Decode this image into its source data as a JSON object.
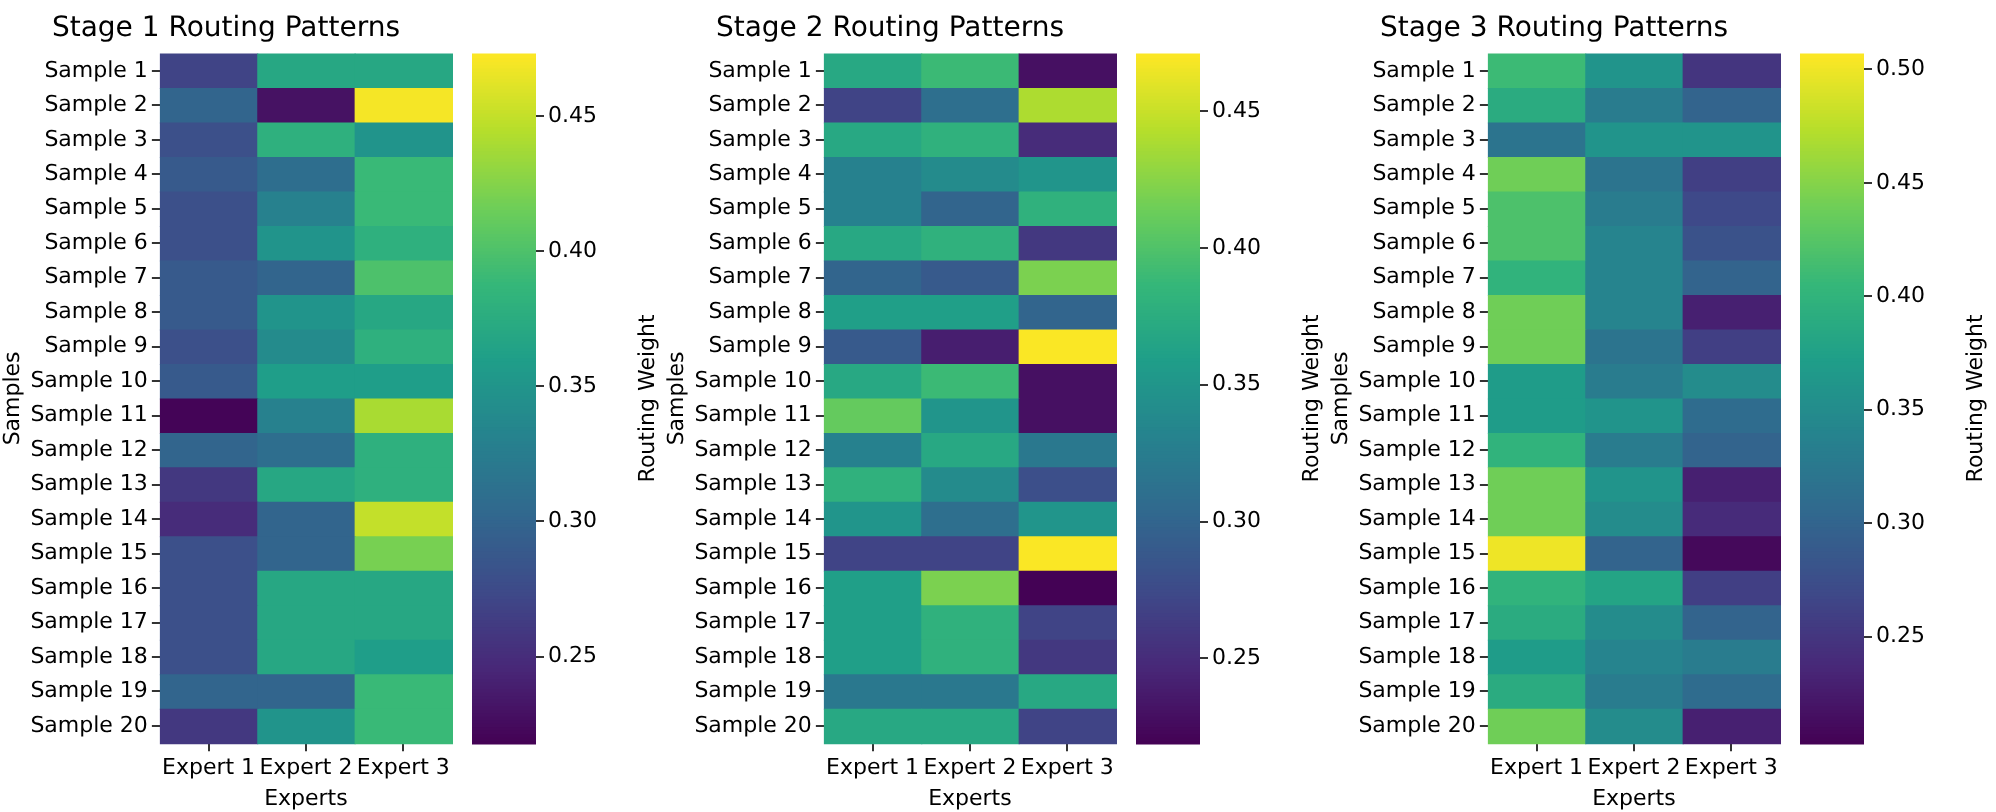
{
  "chart_data": [
    {
      "type": "heatmap",
      "title": "Stage 1 Routing Patterns",
      "xlabel": "Experts",
      "ylabel": "Samples",
      "clabel": "Routing Weight",
      "categories": [
        "Expert 1",
        "Expert 2",
        "Expert 3"
      ],
      "y_categories": [
        "Sample 1",
        "Sample 2",
        "Sample 3",
        "Sample 4",
        "Sample 5",
        "Sample 6",
        "Sample 7",
        "Sample 8",
        "Sample 9",
        "Sample 10",
        "Sample 11",
        "Sample 12",
        "Sample 13",
        "Sample 14",
        "Sample 15",
        "Sample 16",
        "Sample 17",
        "Sample 18",
        "Sample 19",
        "Sample 20"
      ],
      "cells": [
        [
          0.27,
          0.37,
          0.37
        ],
        [
          0.3,
          0.23,
          0.47
        ],
        [
          0.28,
          0.38,
          0.35
        ],
        [
          0.29,
          0.31,
          0.39
        ],
        [
          0.28,
          0.33,
          0.39
        ],
        [
          0.28,
          0.35,
          0.38
        ],
        [
          0.29,
          0.3,
          0.4
        ],
        [
          0.29,
          0.35,
          0.37
        ],
        [
          0.28,
          0.34,
          0.38
        ],
        [
          0.29,
          0.36,
          0.36
        ],
        [
          0.22,
          0.33,
          0.44
        ],
        [
          0.3,
          0.31,
          0.38
        ],
        [
          0.26,
          0.37,
          0.38
        ],
        [
          0.25,
          0.3,
          0.45
        ],
        [
          0.28,
          0.3,
          0.42
        ],
        [
          0.28,
          0.37,
          0.37
        ],
        [
          0.28,
          0.37,
          0.37
        ],
        [
          0.28,
          0.37,
          0.36
        ],
        [
          0.3,
          0.3,
          0.39
        ],
        [
          0.26,
          0.35,
          0.39
        ]
      ],
      "clim": [
        0.218,
        0.473
      ],
      "cticks": [
        0.25,
        {
          "value": 0.3,
          "label": "0.30"
        },
        0.35,
        {
          "value": 0.4,
          "label": "0.40"
        },
        0.45
      ]
    },
    {
      "type": "heatmap",
      "title": "Stage 2 Routing Patterns",
      "xlabel": "Experts",
      "ylabel": "Samples",
      "clabel": "Routing Weight",
      "categories": [
        "Expert 1",
        "Expert 2",
        "Expert 3"
      ],
      "y_categories": [
        "Sample 1",
        "Sample 2",
        "Sample 3",
        "Sample 4",
        "Sample 5",
        "Sample 6",
        "Sample 7",
        "Sample 8",
        "Sample 9",
        "Sample 10",
        "Sample 11",
        "Sample 12",
        "Sample 13",
        "Sample 14",
        "Sample 15",
        "Sample 16",
        "Sample 17",
        "Sample 18",
        "Sample 19",
        "Sample 20"
      ],
      "cells": [
        [
          0.37,
          0.39,
          0.23
        ],
        [
          0.27,
          0.31,
          0.44
        ],
        [
          0.37,
          0.38,
          0.25
        ],
        [
          0.33,
          0.34,
          0.35
        ],
        [
          0.33,
          0.3,
          0.38
        ],
        [
          0.37,
          0.38,
          0.26
        ],
        [
          0.3,
          0.29,
          0.42
        ],
        [
          0.36,
          0.36,
          0.3
        ],
        [
          0.29,
          0.24,
          0.47
        ],
        [
          0.37,
          0.39,
          0.23
        ],
        [
          0.41,
          0.35,
          0.23
        ],
        [
          0.33,
          0.37,
          0.32
        ],
        [
          0.38,
          0.34,
          0.28
        ],
        [
          0.35,
          0.31,
          0.35
        ],
        [
          0.27,
          0.27,
          0.47
        ],
        [
          0.36,
          0.42,
          0.22
        ],
        [
          0.36,
          0.38,
          0.27
        ],
        [
          0.36,
          0.38,
          0.26
        ],
        [
          0.32,
          0.32,
          0.37
        ],
        [
          0.37,
          0.37,
          0.27
        ]
      ],
      "clim": [
        0.219,
        0.471
      ],
      "cticks": [
        0.25,
        {
          "value": 0.3,
          "label": "0.30"
        },
        0.35,
        {
          "value": 0.4,
          "label": "0.40"
        },
        0.45
      ]
    },
    {
      "type": "heatmap",
      "title": "Stage 3 Routing Patterns",
      "xlabel": "Experts",
      "ylabel": "Samples",
      "clabel": "Routing Weight",
      "categories": [
        "Expert 1",
        "Expert 2",
        "Expert 3"
      ],
      "y_categories": [
        "Sample 1",
        "Sample 2",
        "Sample 3",
        "Sample 4",
        "Sample 5",
        "Sample 6",
        "Sample 7",
        "Sample 8",
        "Sample 9",
        "Sample 10",
        "Sample 11",
        "Sample 12",
        "Sample 13",
        "Sample 14",
        "Sample 15",
        "Sample 16",
        "Sample 17",
        "Sample 18",
        "Sample 19",
        "Sample 20"
      ],
      "cells": [
        [
          0.41,
          0.36,
          0.25
        ],
        [
          0.39,
          0.33,
          0.3
        ],
        [
          0.32,
          0.36,
          0.36
        ],
        [
          0.44,
          0.32,
          0.26
        ],
        [
          0.42,
          0.33,
          0.27
        ],
        [
          0.42,
          0.34,
          0.28
        ],
        [
          0.4,
          0.34,
          0.3
        ],
        [
          0.44,
          0.34,
          0.23
        ],
        [
          0.44,
          0.32,
          0.26
        ],
        [
          0.37,
          0.33,
          0.35
        ],
        [
          0.37,
          0.36,
          0.31
        ],
        [
          0.4,
          0.33,
          0.3
        ],
        [
          0.44,
          0.36,
          0.23
        ],
        [
          0.44,
          0.35,
          0.24
        ],
        [
          0.5,
          0.3,
          0.21
        ],
        [
          0.4,
          0.38,
          0.26
        ],
        [
          0.39,
          0.35,
          0.3
        ],
        [
          0.37,
          0.34,
          0.33
        ],
        [
          0.39,
          0.33,
          0.31
        ],
        [
          0.44,
          0.35,
          0.23
        ]
      ],
      "clim": [
        0.203,
        0.507
      ],
      "cticks": [
        0.25,
        {
          "value": 0.3,
          "label": "0.30"
        },
        0.35,
        {
          "value": 0.4,
          "label": "0.40"
        },
        0.45,
        {
          "value": 0.5,
          "label": "0.50"
        }
      ]
    }
  ]
}
